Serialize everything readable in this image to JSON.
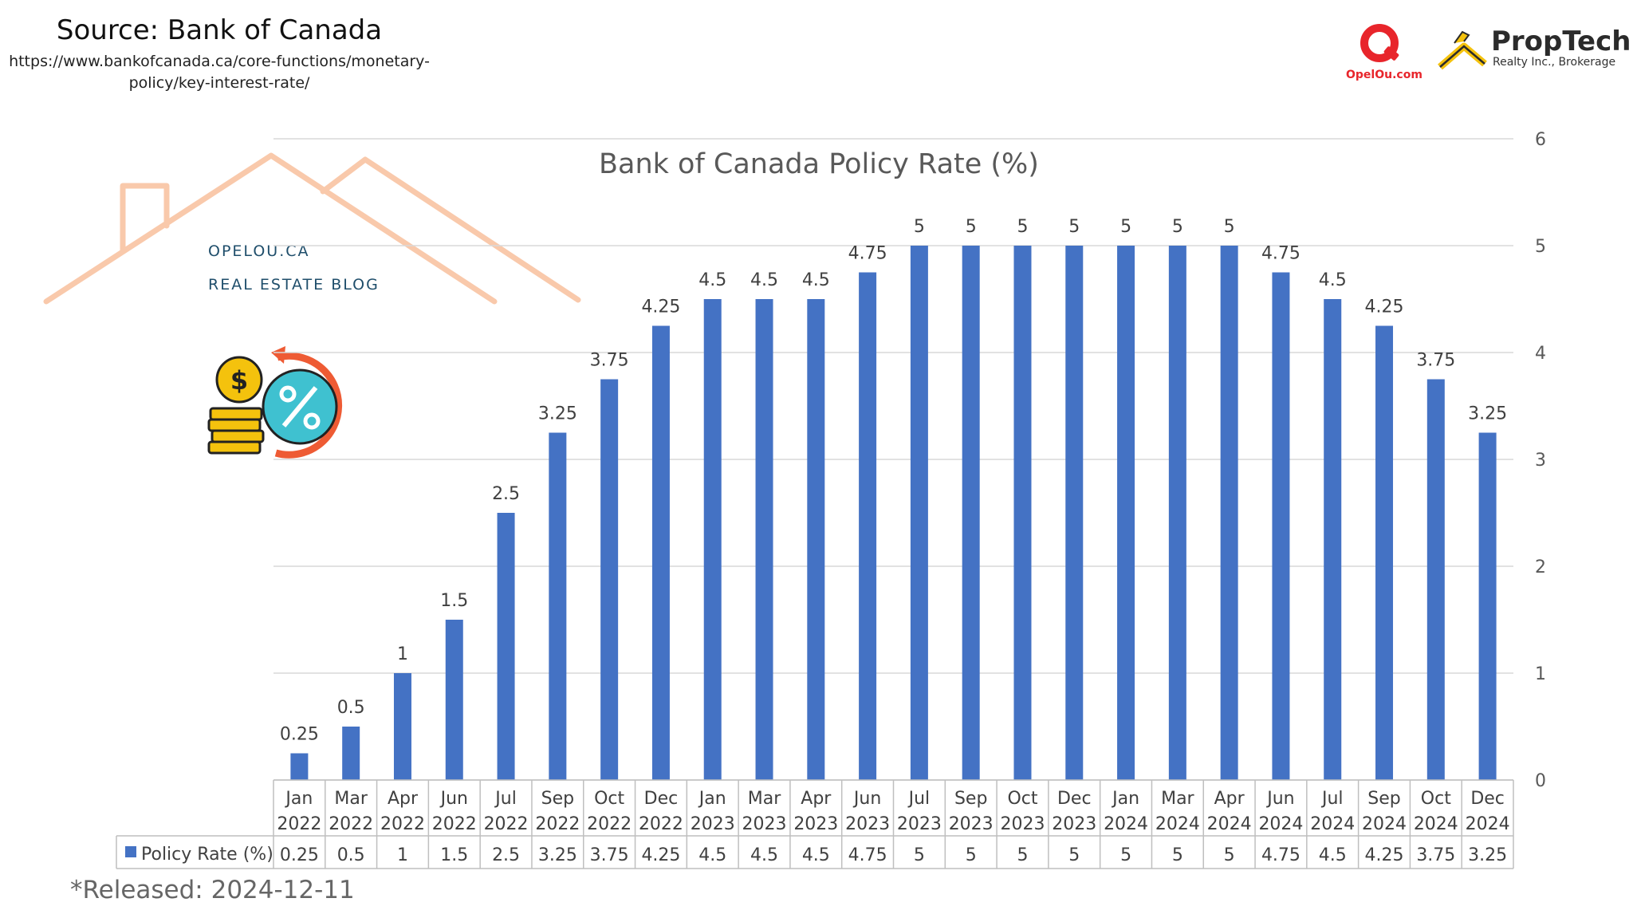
{
  "header": {
    "source_title": "Source: Bank of Canada",
    "source_url_line1": "https://www.bankofcanada.ca/core-functions/monetary-",
    "source_url_line2": "policy/key-interest-rate/"
  },
  "blog": {
    "site": "OPELOU.CA",
    "name": "REAL ESTATE BLOG"
  },
  "brand": {
    "opelou_logo_text": "OpelOu.com",
    "proptech_name": "PropTech",
    "proptech_sub": "Realty Inc., Brokerage"
  },
  "footer": {
    "released": "*Released: 2024-12-11"
  },
  "icons": [
    "house-roof-outline",
    "coin-percent-icon"
  ],
  "colors": {
    "bar": "#4472c4",
    "roof": "#f9c9ab",
    "blog_text": "#1f4e6b",
    "brand_red": "#e8252b",
    "brand_yellow": "#f4c20d"
  },
  "chart_data": {
    "type": "bar",
    "title": "Bank of Canada Policy Rate (%)",
    "categories": [
      [
        "Jan",
        "2022"
      ],
      [
        "Mar",
        "2022"
      ],
      [
        "Apr",
        "2022"
      ],
      [
        "Jun",
        "2022"
      ],
      [
        "Jul",
        "2022"
      ],
      [
        "Sep",
        "2022"
      ],
      [
        "Oct",
        "2022"
      ],
      [
        "Dec",
        "2022"
      ],
      [
        "Jan",
        "2023"
      ],
      [
        "Mar",
        "2023"
      ],
      [
        "Apr",
        "2023"
      ],
      [
        "Jun",
        "2023"
      ],
      [
        "Jul",
        "2023"
      ],
      [
        "Sep",
        "2023"
      ],
      [
        "Oct",
        "2023"
      ],
      [
        "Dec",
        "2023"
      ],
      [
        "Jan",
        "2024"
      ],
      [
        "Mar",
        "2024"
      ],
      [
        "Apr",
        "2024"
      ],
      [
        "Jun",
        "2024"
      ],
      [
        "Jul",
        "2024"
      ],
      [
        "Sep",
        "2024"
      ],
      [
        "Oct",
        "2024"
      ],
      [
        "Dec",
        "2024"
      ]
    ],
    "series": [
      {
        "name": "Policy Rate (%)",
        "values": [
          0.25,
          0.5,
          1,
          1.5,
          2.5,
          3.25,
          3.75,
          4.25,
          4.5,
          4.5,
          4.5,
          4.75,
          5,
          5,
          5,
          5,
          5,
          5,
          5,
          4.75,
          4.5,
          4.25,
          3.75,
          3.25
        ]
      }
    ],
    "y_ticks": [
      "0",
      "1",
      "2",
      "3",
      "4",
      "5",
      "6"
    ],
    "ylim": [
      0,
      6
    ],
    "y_axis_side": "right",
    "grid": true,
    "data_labels": true,
    "data_table": true
  }
}
